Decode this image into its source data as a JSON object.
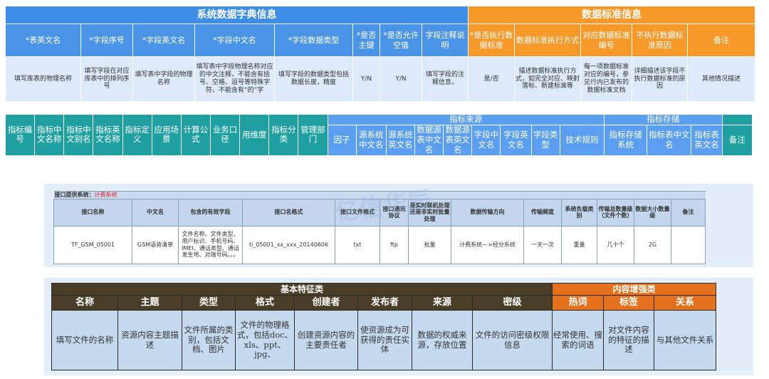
{
  "dict_table": {
    "groups": [
      {
        "label": "系统数据字典信息",
        "span": 8
      },
      {
        "label": "数据标准信息",
        "span": 5
      }
    ],
    "headers": [
      "*表英文名",
      "*字段序号",
      "*字段英文名",
      "*字段中文名",
      "*字段数据类型",
      "*是否主键",
      "*是否允许空值",
      "字段注释说明",
      "*是否执行数据标准",
      "数据标准执行方式",
      "对应数据标准编号",
      "不执行数据标准原因",
      "备注"
    ],
    "row": [
      "填写库表的物理名称",
      "填写字段在对应库表中的排列序号",
      "填写表中字段的物理名称",
      "填写表中字段物理名称对应的中文注释，不能含有括号、空格、逗号等特殊字符，不能含有“的”字",
      "填写字段的数据类型包括数据长度，精度",
      "Y/N",
      "Y/N",
      "填写字段的注释信息，",
      "是/否",
      "描述数据标准执行方式，如完全对应、映射落标、新建标准等",
      "每一项数据标准对应的编号，参见行内已发布的数据标准文档",
      "详细描述该字段不执行数据标准的原因",
      "其他情况描述"
    ],
    "colors": {
      "blue": "#3d8ee6",
      "orange": "#f79a2a"
    }
  },
  "indicator_table": {
    "main_headers": [
      "指标编号",
      "指标中文名称",
      "指标中文别名",
      "指标英文名称",
      "指标定义",
      "应用场景",
      "计算公式",
      "业务口径",
      "用维度",
      "指标分类",
      "管理部门"
    ],
    "source_group": "指标来源",
    "source_headers": [
      "因子",
      "源系统中文名",
      "源系统英文名",
      "数据源表中文名",
      "数据源表英文名",
      "字段中文名",
      "字段英文名",
      "字段类型",
      "技术规则"
    ],
    "storage_group": "指标存储",
    "storage_headers": [
      "指标存储系统",
      "指标表中文名",
      "指标表英文名"
    ],
    "remark": "备注",
    "colors": {
      "teal": "#1fa0a0",
      "blue": "#5a9ef0"
    }
  },
  "interface_table": {
    "title_label": "接口提供系统：",
    "title_value": "计费系统",
    "watermark": "亿信华辰",
    "headers": [
      "接口名称",
      "中文名",
      "包含的有效字段",
      "接口名格式",
      "接口文件格式",
      "接口通讯协议",
      "是实时联机处理还是非实时批量处理",
      "数据传输方向",
      "传输频度",
      "系统负载类别",
      "传输总数量级（文件个数）",
      "数据大小数量级",
      "备注"
    ],
    "row": [
      "TF_GSM_05001",
      "GSM语音清单",
      "文件名称、文件类型、用户标识、手机号码、IMEI、通话类型、通话发生地、对端号码。。。",
      "ti_05001_xx_xxx_20140606",
      "txt",
      "ftp",
      "批量",
      "计费系统—>经分系统",
      "一天一次",
      "重量",
      "几十个",
      "2G",
      ""
    ]
  },
  "metadata_table": {
    "groups": [
      {
        "label": "基本特征类",
        "span": 8
      },
      {
        "label": "内容增强类",
        "span": 3
      }
    ],
    "headers": [
      "名称",
      "主题",
      "类型",
      "格式",
      "创建者",
      "发布者",
      "来源",
      "密级",
      "热词",
      "标签",
      "关系"
    ],
    "row": [
      "填写文件的名称",
      "资源内容主题描述",
      "文件所属的类别，包括文档、图片",
      "文件的物理格式，包括doc、xls、ppt、jpg、",
      "创建资源内容的主要责任者",
      "使资源成为可获得的责任实体",
      "数据的权威来源，存放位置",
      "文件的访问密级权限信息",
      "经常使用、搜索的词语",
      "对文件内容的特征的描述",
      "与其他文件关系"
    ],
    "colors": {
      "brown": "#4a3f26",
      "orange": "#e4701c"
    }
  }
}
